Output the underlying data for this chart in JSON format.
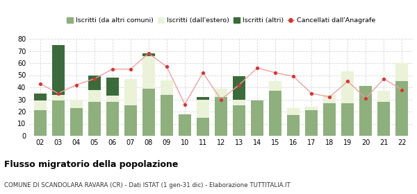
{
  "years": [
    "02",
    "03",
    "04",
    "05",
    "06",
    "07",
    "08",
    "09",
    "10",
    "11",
    "12",
    "13",
    "14",
    "15",
    "16",
    "17",
    "18",
    "19",
    "20",
    "21",
    "22"
  ],
  "iscritti_altri_comuni": [
    21,
    29,
    23,
    28,
    28,
    25,
    39,
    34,
    18,
    15,
    32,
    25,
    29,
    37,
    17,
    21,
    27,
    27,
    41,
    28,
    45
  ],
  "iscritti_estero": [
    8,
    5,
    7,
    10,
    5,
    22,
    27,
    12,
    0,
    15,
    7,
    5,
    0,
    8,
    6,
    3,
    7,
    26,
    0,
    9,
    15
  ],
  "iscritti_altri": [
    6,
    41,
    0,
    12,
    15,
    0,
    2,
    0,
    0,
    2,
    0,
    19,
    0,
    0,
    0,
    0,
    0,
    0,
    0,
    0,
    0
  ],
  "cancellati": [
    43,
    35,
    42,
    47,
    55,
    55,
    68,
    57,
    26,
    52,
    30,
    42,
    56,
    52,
    49,
    35,
    32,
    45,
    31,
    47,
    38
  ],
  "color_altri_comuni": "#8db07c",
  "color_estero": "#eaf2d8",
  "color_altri": "#3b6b3b",
  "color_cancellati": "#e03030",
  "color_cancellati_line": "#f0a0a0",
  "ylim": [
    0,
    80
  ],
  "yticks": [
    0,
    10,
    20,
    30,
    40,
    50,
    60,
    70,
    80
  ],
  "title": "Flusso migratorio della popolazione",
  "subtitle": "COMUNE DI SCANDOLARA RAVARA (CR) - Dati ISTAT (1 gen-31 dic) - Elaborazione TUTTITALIA.IT",
  "legend_labels": [
    "Iscritti (da altri comuni)",
    "Iscritti (dall'estero)",
    "Iscritti (altri)",
    "Cancellati dall'Anagrafe"
  ],
  "background_color": "#ffffff",
  "grid_color": "#d8d8d8"
}
